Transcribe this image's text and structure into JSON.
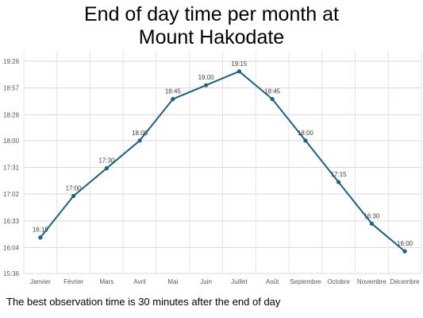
{
  "chart_data": {
    "type": "line",
    "title_lines": [
      "End of day time per month at",
      "Mount Hakodate"
    ],
    "xlabel": "",
    "ylabel": "",
    "categories": [
      "Janvier",
      "Février",
      "Mars",
      "Avril",
      "Mai",
      "Juin",
      "Juillet",
      "Août",
      "Septembre",
      "Octobre",
      "Novembre",
      "Décembre"
    ],
    "series": [
      {
        "values": [
          "16:15",
          "17:00",
          "17:30",
          "18:00",
          "18:45",
          "19:00",
          "19:15",
          "18:45",
          "18:00",
          "17:15",
          "16:30",
          "16:00"
        ],
        "data_labels": [
          "16:15",
          "17:00",
          "17:30",
          "18:00",
          "18:45",
          "19:00",
          "19:15",
          "18:45",
          "18:00",
          "17:15",
          "16:30",
          "16:00"
        ]
      }
    ],
    "y_ticks": [
      "15:36",
      "16:04",
      "16:33",
      "17:02",
      "17:31",
      "18:00",
      "18:28",
      "18:57",
      "19:26"
    ],
    "ylim": [
      "15:36",
      "19:26"
    ],
    "grid": true,
    "legend": "none",
    "line_color": "#1f5f7f"
  },
  "footnote": "The best observation time is 30 minutes after the end of day"
}
